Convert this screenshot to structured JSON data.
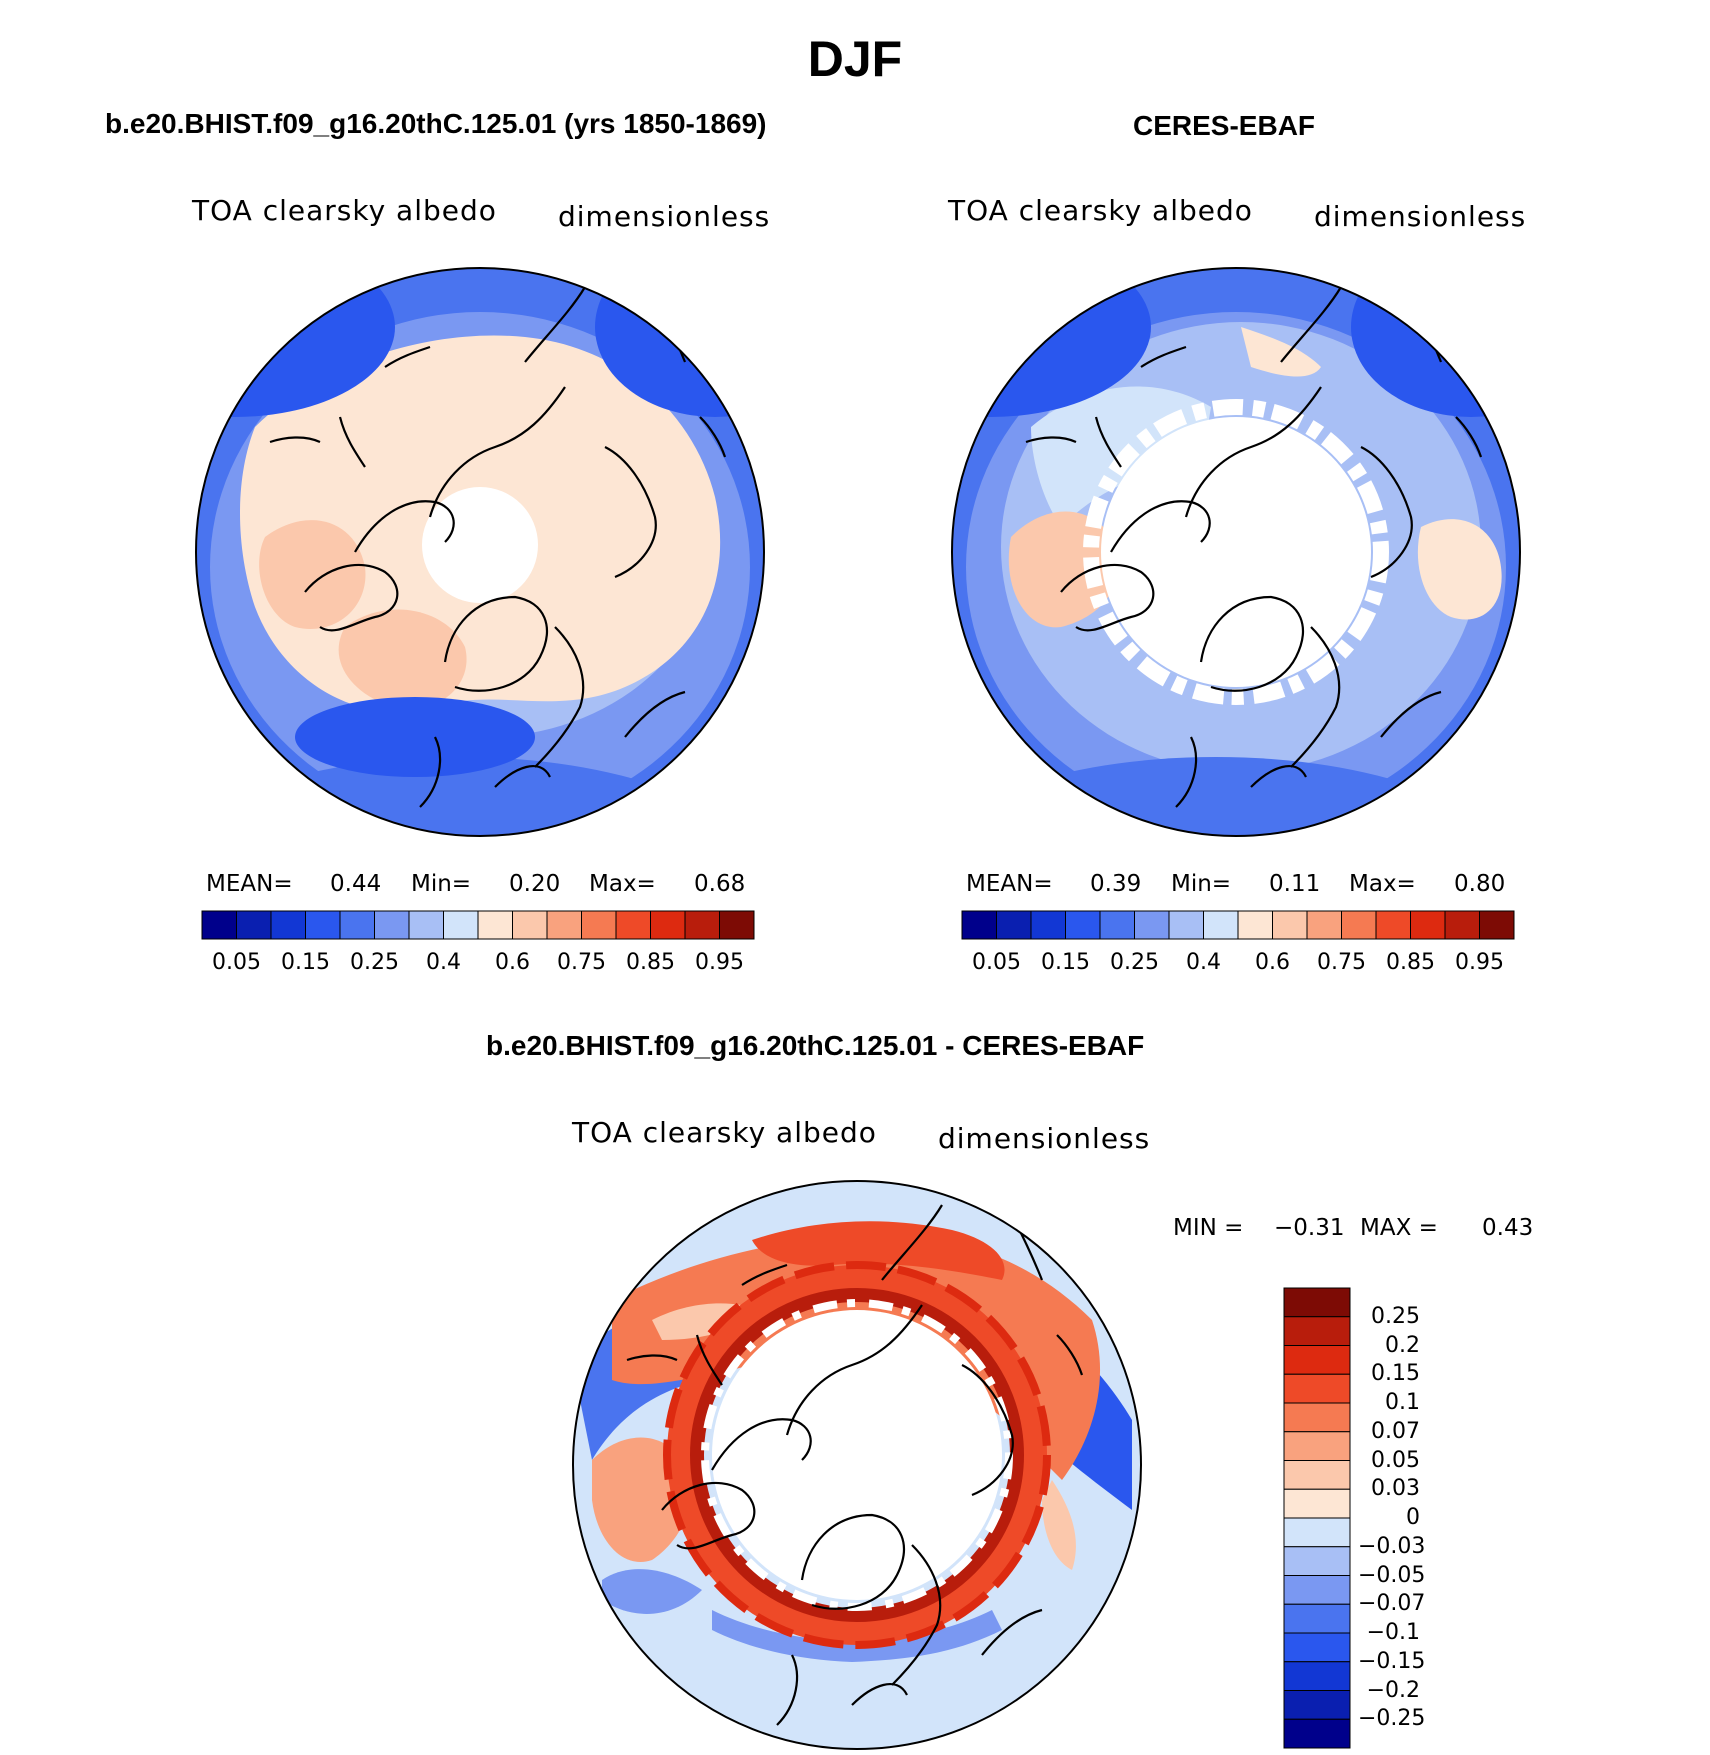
{
  "figure": {
    "season": "DJF"
  },
  "panels": [
    {
      "title": "b.e20.BHIST.f09_g16.20thC.125.01 (yrs 1850-1869)",
      "variable": "TOA clearsky albedo",
      "units": "dimensionless",
      "mean_label": "MEAN=",
      "mean_value": "0.44",
      "min_label": "Min=",
      "min_value": "0.20",
      "max_label": "Max=",
      "max_value": "0.68"
    },
    {
      "title": "CERES-EBAF",
      "variable": "TOA clearsky albedo",
      "units": "dimensionless",
      "mean_label": "MEAN=",
      "mean_value": "0.39",
      "min_label": "Min=",
      "min_value": "0.11",
      "max_label": "Max=",
      "max_value": "0.80"
    }
  ],
  "difference_panel": {
    "title": "b.e20.BHIST.f09_g16.20thC.125.01 - CERES-EBAF",
    "variable": "TOA clearsky albedo",
    "units": "dimensionless",
    "min_label": "MIN =",
    "min_value": "−0.31",
    "max_label": "MAX =",
    "max_value": "0.43"
  },
  "colorbar_absolute": {
    "labels": [
      "0.05",
      "0.15",
      "0.25",
      "0.4",
      "0.6",
      "0.75",
      "0.85",
      "0.95"
    ],
    "colors": [
      "#00008b",
      "#0a1fb0",
      "#1237d4",
      "#2a57ee",
      "#4a74ef",
      "#7a98f2",
      "#a8bff5",
      "#d2e4fa",
      "#fde6d4",
      "#fbc8ac",
      "#f9a27e",
      "#f57a52",
      "#ee4a28",
      "#dd2a10",
      "#b81d0c",
      "#7d0b05"
    ]
  },
  "colorbar_difference": {
    "labels": [
      "0.25",
      "0.2",
      "0.15",
      "0.1",
      "0.07",
      "0.05",
      "0.03",
      "0",
      "−0.03",
      "−0.05",
      "−0.07",
      "−0.1",
      "−0.15",
      "−0.2",
      "−0.25"
    ],
    "colors": [
      "#7d0b05",
      "#b81d0c",
      "#dd2a10",
      "#ee4a28",
      "#f57a52",
      "#f9a27e",
      "#fbc8ac",
      "#fde6d4",
      "#d2e4fa",
      "#a8bff5",
      "#7a98f2",
      "#4a74ef",
      "#2a57ee",
      "#1237d4",
      "#0a1fb0",
      "#00008b"
    ]
  }
}
